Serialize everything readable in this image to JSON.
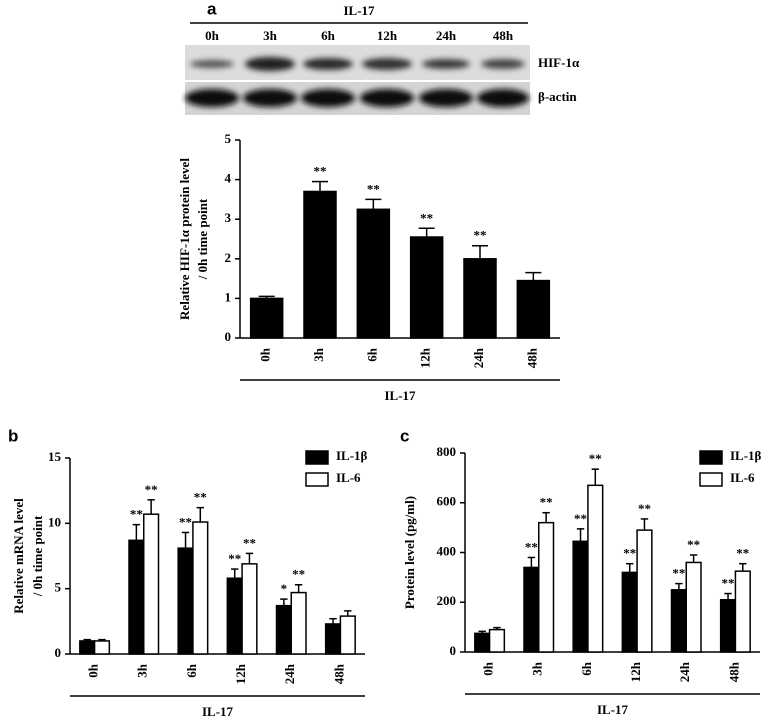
{
  "figure": {
    "panels": [
      "a",
      "b",
      "c"
    ],
    "blot": {
      "group_label": "IL-17",
      "lanes": [
        "0h",
        "3h",
        "6h",
        "12h",
        "24h",
        "48h"
      ],
      "rows": [
        "HIF-1α",
        "β-actin"
      ]
    }
  },
  "chart_data": [
    {
      "type": "bar",
      "ylabel": [
        "Relative HIF-1α  protein level",
        "/ 0h time point"
      ],
      "categories": [
        "0h",
        "3h",
        "6h",
        "12h",
        "24h",
        "48h"
      ],
      "group_label": "IL-17",
      "values": [
        1.0,
        3.7,
        3.25,
        2.55,
        2.0,
        1.45
      ],
      "errors": [
        0.05,
        0.25,
        0.25,
        0.22,
        0.33,
        0.2
      ],
      "annotations": [
        null,
        "**",
        "**",
        "**",
        "**",
        null
      ],
      "color": "#000000",
      "ylim": [
        0,
        5
      ],
      "yticks": [
        0,
        1,
        2,
        3,
        4,
        5
      ]
    },
    {
      "type": "bar",
      "ylabel": [
        "Relative mRNA level",
        "/ 0h time point"
      ],
      "categories": [
        "0h",
        "3h",
        "6h",
        "12h",
        "24h",
        "48h"
      ],
      "group_label": "IL-17",
      "series": [
        {
          "name": "IL-1β",
          "color": "#000000",
          "values": [
            1.0,
            8.7,
            8.1,
            5.8,
            3.7,
            2.3
          ],
          "errors": [
            0.1,
            1.2,
            1.2,
            0.7,
            0.5,
            0.4
          ],
          "annotations": [
            null,
            "**",
            "**",
            "**",
            "*",
            null
          ]
        },
        {
          "name": "IL-6",
          "color": "#ffffff",
          "values": [
            1.0,
            10.7,
            10.1,
            6.9,
            4.7,
            2.9
          ],
          "errors": [
            0.1,
            1.1,
            1.1,
            0.8,
            0.6,
            0.4
          ],
          "annotations": [
            null,
            "**",
            "**",
            "**",
            "**",
            null
          ]
        }
      ],
      "ylim": [
        0,
        15
      ],
      "yticks": [
        0,
        5,
        10,
        15
      ],
      "legend": "upper right"
    },
    {
      "type": "bar",
      "ylabel": [
        "Protein level (pg/ml)"
      ],
      "categories": [
        "0h",
        "3h",
        "6h",
        "12h",
        "24h",
        "48h"
      ],
      "group_label": "IL-17",
      "series": [
        {
          "name": "IL-1β",
          "color": "#000000",
          "values": [
            75,
            340,
            445,
            320,
            250,
            210
          ],
          "errors": [
            8,
            40,
            50,
            35,
            25,
            25
          ],
          "annotations": [
            null,
            "**",
            "**",
            "**",
            "**",
            "**"
          ]
        },
        {
          "name": "IL-6",
          "color": "#ffffff",
          "values": [
            90,
            520,
            670,
            490,
            360,
            325
          ],
          "errors": [
            8,
            40,
            65,
            45,
            30,
            30
          ],
          "annotations": [
            null,
            "**",
            "**",
            "**",
            "**",
            "**"
          ]
        }
      ],
      "ylim": [
        0,
        800
      ],
      "yticks": [
        0,
        200,
        400,
        600,
        800
      ],
      "legend": "upper right"
    }
  ]
}
